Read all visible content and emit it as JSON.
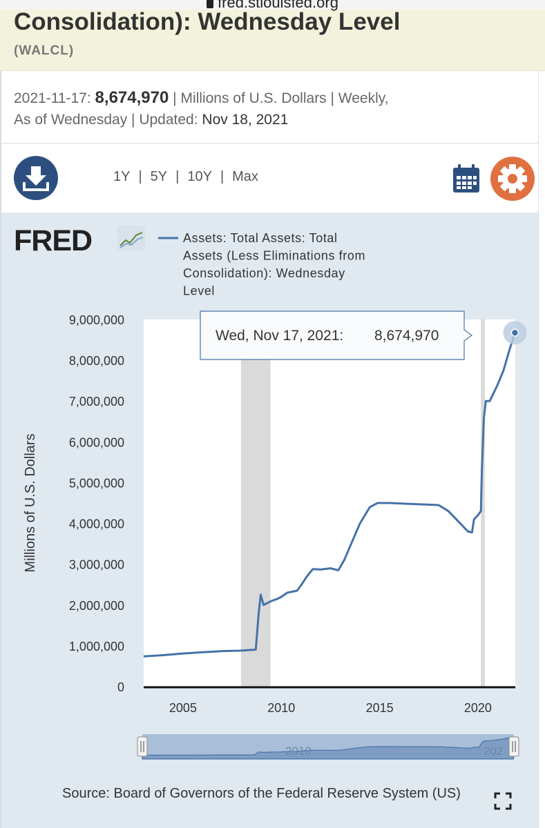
{
  "browser": {
    "url": "fred.stlouisfed.org"
  },
  "series": {
    "title_line": "Consolidation): Wednesday Level",
    "code": "(WALCL)"
  },
  "meta": {
    "date": "2021-11-17:",
    "value": "8,674,970",
    "units_freq": "| Millions of U.S. Dollars | Weekly,",
    "asof": "As of Wednesday | Updated:",
    "updated": "Nov 18, 2021"
  },
  "toolbar": {
    "ranges": [
      "1Y",
      "5Y",
      "10Y",
      "Max"
    ],
    "download_icon": "download-icon",
    "calendar_icon": "calendar-icon",
    "settings_icon": "gear-icon"
  },
  "logo": {
    "text": "FRED"
  },
  "tooltip": {
    "label": "Wed, Nov 17, 2021:",
    "value": "8,674,970"
  },
  "source": "Source: Board of Governors of the Federal Reserve System (US)",
  "colors": {
    "line": "#4572a7",
    "accent_orange": "#e07040",
    "navy": "#2d4f80",
    "panel": "#e1e9f0",
    "recession": "#dadada"
  },
  "chart_data": {
    "type": "line",
    "legend": [
      "Assets: Total Assets: Total",
      "Assets (Less Eliminations from",
      "Consolidation): Wednesday",
      "Level"
    ],
    "ylabel": "Millions of U.S. Dollars",
    "ylim": [
      0,
      9000000
    ],
    "xlim": [
      2003.0,
      2021.9
    ],
    "y_ticks": [
      {
        "v": 9000000,
        "label": "9,000,000"
      },
      {
        "v": 8000000,
        "label": "8,000,000"
      },
      {
        "v": 7000000,
        "label": "7,000,000"
      },
      {
        "v": 6000000,
        "label": "6,000,000"
      },
      {
        "v": 5000000,
        "label": "5,000,000"
      },
      {
        "v": 4000000,
        "label": "4,000,000"
      },
      {
        "v": 3000000,
        "label": "3,000,000"
      },
      {
        "v": 2000000,
        "label": "2,000,000"
      },
      {
        "v": 1000000,
        "label": "1,000,000"
      },
      {
        "v": 0,
        "label": "0"
      }
    ],
    "x_ticks": [
      {
        "v": 2005,
        "label": "2005"
      },
      {
        "v": 2010,
        "label": "2010"
      },
      {
        "v": 2015,
        "label": "2015"
      },
      {
        "v": 2020,
        "label": "2020"
      }
    ],
    "navigator_label": "2010",
    "navigator_label_2": "202",
    "recessions": [
      [
        2007.95,
        2009.45
      ],
      [
        2020.15,
        2020.35
      ]
    ],
    "x": [
      2003.0,
      2004.0,
      2005.0,
      2006.0,
      2007.0,
      2007.9,
      2008.7,
      2008.85,
      2008.95,
      2009.1,
      2009.3,
      2009.5,
      2009.8,
      2010.0,
      2010.3,
      2010.8,
      2011.0,
      2011.3,
      2011.6,
      2012.0,
      2012.5,
      2012.9,
      2013.2,
      2013.6,
      2014.0,
      2014.5,
      2014.9,
      2015.5,
      2016.5,
      2017.5,
      2018.0,
      2018.5,
      2019.0,
      2019.5,
      2019.7,
      2019.8,
      2020.0,
      2020.15,
      2020.2,
      2020.3,
      2020.4,
      2020.6,
      2021.0,
      2021.3,
      2021.6,
      2021.88
    ],
    "y": [
      740000,
      770000,
      810000,
      840000,
      870000,
      880000,
      905000,
      1800000,
      2250000,
      2000000,
      2050000,
      2100000,
      2150000,
      2200000,
      2300000,
      2350000,
      2480000,
      2700000,
      2880000,
      2870000,
      2900000,
      2850000,
      3100000,
      3550000,
      4000000,
      4400000,
      4500000,
      4500000,
      4480000,
      4460000,
      4450000,
      4300000,
      4050000,
      3800000,
      3780000,
      4100000,
      4200000,
      4300000,
      5300000,
      6580000,
      7000000,
      7000000,
      7400000,
      7750000,
      8250000,
      8674970
    ]
  }
}
